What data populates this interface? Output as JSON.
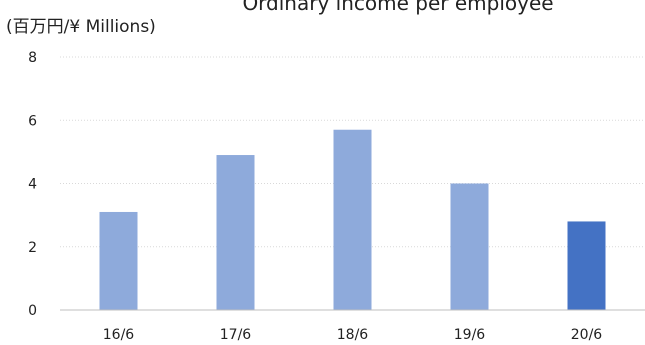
{
  "chart_data": {
    "type": "bar",
    "title": "Ordinary income per employee",
    "unit_label": "(百万円/¥ Millions)",
    "categories": [
      "16/6",
      "17/6",
      "18/6",
      "19/6",
      "20/6"
    ],
    "values": [
      3.1,
      4.9,
      5.7,
      4.0,
      2.8
    ],
    "ylim": [
      0,
      8
    ],
    "yticks": [
      0,
      2,
      4,
      6,
      8
    ],
    "grid": true,
    "bar_colors": [
      "#8eaadb",
      "#8eaadb",
      "#8eaadb",
      "#8eaadb",
      "#4472c4"
    ]
  }
}
